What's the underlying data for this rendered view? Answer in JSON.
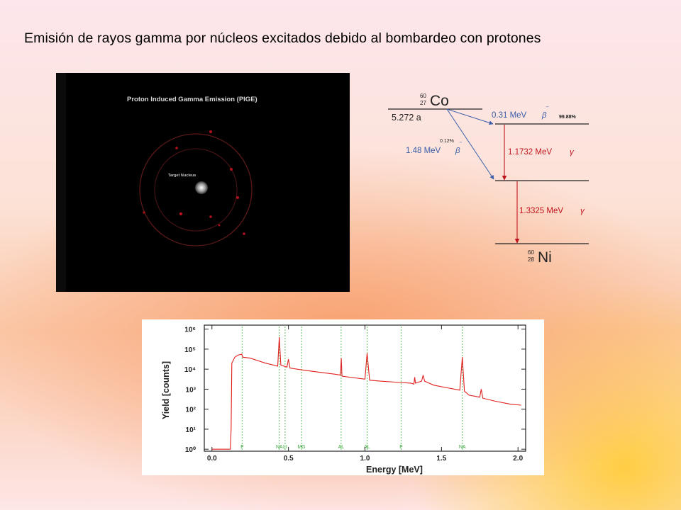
{
  "slide": {
    "title": "Emisión de rayos gamma por núcleos excitados debido al bombardeo con protones"
  },
  "pige_image": {
    "title": "Proton Induced Gamma Emission (PIGE)",
    "nucleus_label": "Target Nucleus"
  },
  "decay_scheme": {
    "parent_mass": "60",
    "parent_atomic": "27",
    "parent_symbol": "Co",
    "half_life": "5.272 a",
    "beta1_energy": "0.31 MeV",
    "beta1_symbol": "β",
    "beta1_branch": "99.88%",
    "beta2_branch": "0.12%",
    "beta2_energy": "1.48 MeV",
    "beta2_symbol": "β",
    "gamma1_energy": "1.1732 MeV",
    "gamma1_symbol": "γ",
    "gamma2_energy": "1.3325 MeV",
    "gamma2_symbol": "γ",
    "daughter_mass": "60",
    "daughter_atomic": "28",
    "daughter_symbol": "Ni",
    "colors": {
      "beta": "#3a5ea8",
      "gamma": "#c0141e",
      "level": "#222222"
    }
  },
  "chart_data": {
    "type": "line",
    "xlabel": "Energy [MeV]",
    "ylabel": "Yield [counts]",
    "xlim": [
      -0.05,
      2.05
    ],
    "ylim_log10": [
      -0.1,
      6.2
    ],
    "x_ticks": [
      "0.0",
      "0.5",
      "1.0",
      "1.5",
      "2.0"
    ],
    "x_tick_values": [
      0.0,
      0.5,
      1.0,
      1.5,
      2.0
    ],
    "y_ticks": [
      "10⁰",
      "10¹",
      "10²",
      "10³",
      "10⁴",
      "10⁵",
      "10⁶"
    ],
    "y_tick_exponents": [
      0,
      1,
      2,
      3,
      4,
      5,
      6
    ],
    "element_markers": [
      {
        "label": "F",
        "x": 0.197
      },
      {
        "label": "NA",
        "x": 0.44
      },
      {
        "label": "LI",
        "x": 0.478
      },
      {
        "label": "MG",
        "x": 0.585
      },
      {
        "label": "AL",
        "x": 0.844
      },
      {
        "label": "AL",
        "x": 1.014
      },
      {
        "label": "F",
        "x": 1.236
      },
      {
        "label": "NA",
        "x": 1.636
      }
    ],
    "series": [
      {
        "color": "#e0201e",
        "points": [
          [
            0.0,
            0.0
          ],
          [
            0.12,
            0.0
          ],
          [
            0.125,
            1.0
          ],
          [
            0.13,
            4.3
          ],
          [
            0.15,
            4.6
          ],
          [
            0.17,
            4.7
          ],
          [
            0.195,
            4.75
          ],
          [
            0.2,
            4.6
          ],
          [
            0.25,
            4.55
          ],
          [
            0.35,
            4.3
          ],
          [
            0.43,
            4.15
          ],
          [
            0.44,
            5.6
          ],
          [
            0.45,
            4.2
          ],
          [
            0.49,
            4.1
          ],
          [
            0.5,
            4.5
          ],
          [
            0.51,
            4.05
          ],
          [
            0.6,
            3.95
          ],
          [
            0.7,
            3.85
          ],
          [
            0.8,
            3.75
          ],
          [
            0.84,
            3.7
          ],
          [
            0.845,
            4.55
          ],
          [
            0.85,
            3.65
          ],
          [
            0.9,
            3.6
          ],
          [
            1.0,
            3.5
          ],
          [
            1.014,
            4.8
          ],
          [
            1.03,
            3.45
          ],
          [
            1.1,
            3.4
          ],
          [
            1.2,
            3.35
          ],
          [
            1.3,
            3.3
          ],
          [
            1.32,
            3.25
          ],
          [
            1.325,
            3.6
          ],
          [
            1.33,
            3.3
          ],
          [
            1.37,
            3.4
          ],
          [
            1.38,
            3.7
          ],
          [
            1.39,
            3.4
          ],
          [
            1.45,
            3.2
          ],
          [
            1.55,
            3.05
          ],
          [
            1.62,
            2.95
          ],
          [
            1.636,
            4.6
          ],
          [
            1.65,
            2.9
          ],
          [
            1.68,
            2.7
          ],
          [
            1.75,
            2.6
          ],
          [
            1.76,
            3.0
          ],
          [
            1.77,
            2.55
          ],
          [
            1.85,
            2.4
          ],
          [
            1.95,
            2.25
          ],
          [
            2.02,
            2.2
          ]
        ]
      }
    ]
  }
}
